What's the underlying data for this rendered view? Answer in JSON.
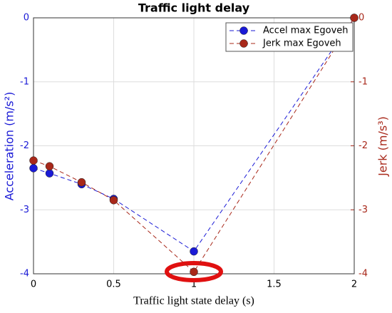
{
  "chart_data": {
    "type": "line",
    "title": "Traffic light delay",
    "x_label": "Traffic light state delay (s)",
    "y_label": "Acceleration (m/s²)",
    "y2_label": "Jerk (m/s³)",
    "x": [
      0,
      0.1,
      0.3,
      0.5,
      1,
      2
    ],
    "series": [
      {
        "name": "Accel max Egoveh",
        "color": "#1a1ad6",
        "values": [
          -2.35,
          -2.43,
          -2.6,
          -2.83,
          -3.65,
          0
        ]
      },
      {
        "name": "Jerk max Egoveh",
        "color": "#a8281a",
        "axis": "y2",
        "values": [
          -2.23,
          -2.32,
          -2.57,
          -2.85,
          -3.97,
          0
        ]
      }
    ],
    "xlim": [
      0,
      2
    ],
    "xticks": [
      0,
      0.5,
      1,
      1.5,
      2
    ],
    "ylim": [
      -4,
      0
    ],
    "yticks": [
      0,
      -1,
      -2,
      -3,
      -4
    ],
    "y2lim": [
      -4,
      0
    ],
    "y2ticks": [
      0,
      -1,
      -2,
      -3,
      -4
    ],
    "grid": true,
    "legend": "top-right"
  }
}
